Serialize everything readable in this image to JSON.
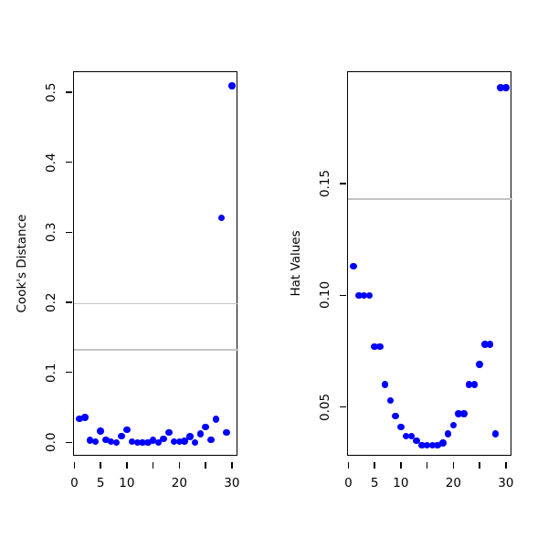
{
  "window": {
    "background": "#FFFFFF"
  },
  "style": {
    "point_color": "#0000FF",
    "refline_color": "#C4C4C4",
    "axis_color": "#000000",
    "text_color": "#000000"
  },
  "chart_data": [
    {
      "type": "scatter",
      "title": "",
      "xlabel": "",
      "ylabel": "Cook's Distance",
      "x": [
        1,
        2,
        3,
        4,
        5,
        6,
        7,
        8,
        9,
        10,
        11,
        12,
        13,
        14,
        15,
        16,
        17,
        18,
        19,
        20,
        21,
        22,
        23,
        24,
        25,
        26,
        27,
        28,
        29,
        30
      ],
      "y": [
        0.034,
        0.036,
        0.003,
        0.001,
        0.016,
        0.004,
        0.001,
        0.0,
        0.009,
        0.018,
        0.001,
        0.0,
        0.0,
        0.0,
        0.003,
        0.0,
        0.005,
        0.014,
        0.001,
        0.001,
        0.002,
        0.008,
        0.0,
        0.012,
        0.022,
        0.004,
        0.033,
        0.321,
        0.014,
        0.509
      ],
      "xlim": [
        -0.16,
        31.16
      ],
      "ylim": [
        -0.0204,
        0.5294
      ],
      "xticks": [
        0,
        5,
        10,
        15,
        20,
        25,
        30
      ],
      "xtick_labels": [
        "0",
        "5",
        "10",
        "",
        "20",
        "",
        "30"
      ],
      "yticks": [
        0.0,
        0.1,
        0.2,
        0.3,
        0.4,
        0.5
      ],
      "ytick_labels": [
        "0.0",
        "0.1",
        "0.2",
        "0.3",
        "0.4",
        "0.5"
      ],
      "reference_lines": [
        0.132,
        0.198
      ],
      "grid": false,
      "legend": null
    },
    {
      "type": "scatter",
      "title": "",
      "xlabel": "",
      "ylabel": "Hat Values",
      "x": [
        1,
        2,
        3,
        4,
        5,
        6,
        7,
        8,
        9,
        10,
        11,
        12,
        13,
        14,
        15,
        16,
        17,
        18,
        19,
        20,
        21,
        22,
        23,
        24,
        25,
        26,
        27,
        28,
        29,
        30
      ],
      "y": [
        0.113,
        0.1,
        0.1,
        0.1,
        0.077,
        0.077,
        0.06,
        0.053,
        0.046,
        0.041,
        0.037,
        0.037,
        0.035,
        0.033,
        0.033,
        0.033,
        0.033,
        0.034,
        0.038,
        0.042,
        0.047,
        0.047,
        0.06,
        0.06,
        0.069,
        0.078,
        0.078,
        0.038,
        0.193,
        0.193
      ],
      "xlim": [
        -0.16,
        31.16
      ],
      "ylim": [
        0.0278,
        0.2001
      ],
      "xticks": [
        0,
        5,
        10,
        15,
        20,
        25,
        30
      ],
      "xtick_labels": [
        "0",
        "5",
        "10",
        "",
        "20",
        "",
        "30"
      ],
      "yticks": [
        0.05,
        0.1,
        0.15
      ],
      "ytick_labels": [
        "0.05",
        "0.10",
        "0.15"
      ],
      "reference_lines": [
        0.143
      ],
      "grid": false,
      "legend": null
    }
  ]
}
